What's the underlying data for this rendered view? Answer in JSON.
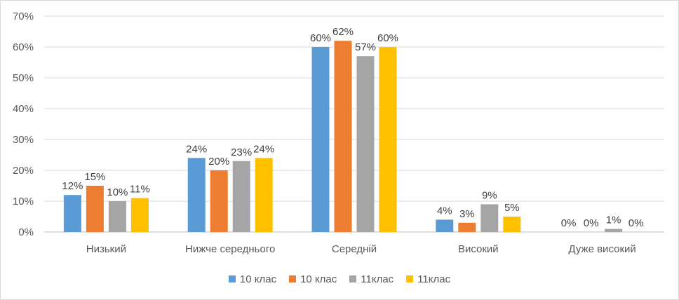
{
  "chart_data": {
    "type": "bar",
    "categories": [
      "Низький",
      "Нижче середнього",
      "Середній",
      "Високий",
      "Дуже високий"
    ],
    "series": [
      {
        "name": "10 клас",
        "color": "#5b9bd5",
        "values": [
          12,
          24,
          60,
          4,
          0
        ]
      },
      {
        "name": "10 клас",
        "color": "#ed7d31",
        "values": [
          15,
          20,
          62,
          3,
          0
        ]
      },
      {
        "name": "11клас",
        "color": "#a5a5a5",
        "values": [
          10,
          23,
          57,
          9,
          1
        ]
      },
      {
        "name": "11клас",
        "color": "#ffc000",
        "values": [
          11,
          24,
          60,
          5,
          0
        ]
      }
    ],
    "ylim": [
      0,
      70
    ],
    "yticks": [
      0,
      10,
      20,
      30,
      40,
      50,
      60,
      70
    ],
    "unit": "%",
    "grid": true,
    "legend": "bottom"
  }
}
